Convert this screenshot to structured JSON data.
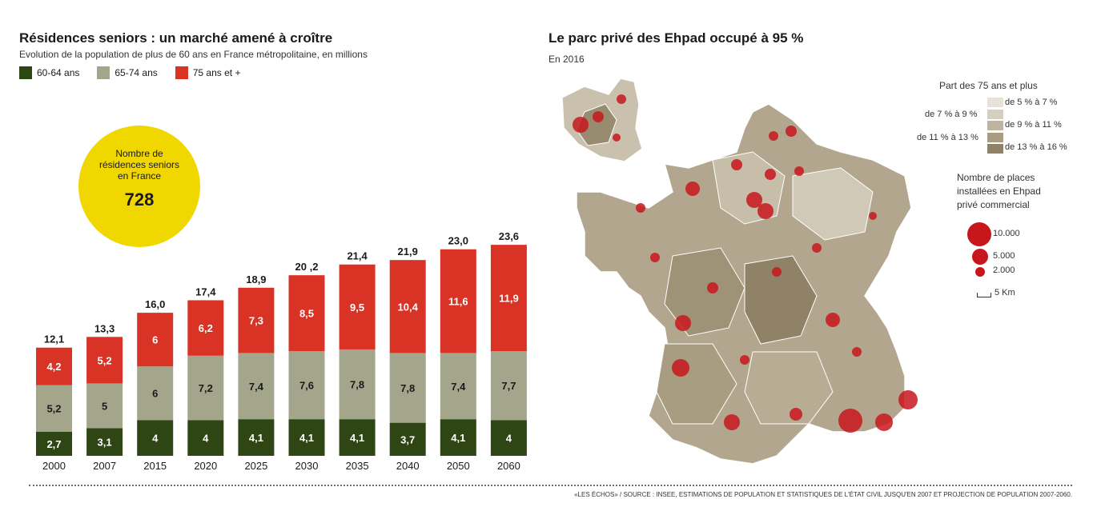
{
  "left": {
    "title": "Résidences seniors : un marché amené à croître",
    "subtitle": "Evolution de la population de plus de 60 ans en France métropolitaine, en millions",
    "legend": [
      {
        "label": "60-64 ans",
        "color": "#2d4614"
      },
      {
        "label": "65-74 ans",
        "color": "#a3a68b"
      },
      {
        "label": "75 ans et +",
        "color": "#d93326"
      }
    ],
    "badge": {
      "label": "Nombre de résidences seniors en France",
      "value": "728"
    }
  },
  "chart_data": {
    "type": "bar",
    "stacked": true,
    "categories": [
      "2000",
      "2007",
      "2015",
      "2020",
      "2025",
      "2030",
      "2035",
      "2040",
      "2050",
      "2060"
    ],
    "series": [
      {
        "name": "60-64 ans",
        "color": "#2d4614",
        "values": [
          2.7,
          3.1,
          4,
          4,
          4.1,
          4.1,
          4.1,
          3.7,
          4.1,
          4
        ],
        "labels": [
          "2,7",
          "3,1",
          "4",
          "4",
          "4,1",
          "4,1",
          "4,1",
          "3,7",
          "4,1",
          "4"
        ]
      },
      {
        "name": "65-74 ans",
        "color": "#a3a68b",
        "values": [
          5.2,
          5,
          6,
          7.2,
          7.4,
          7.6,
          7.8,
          7.8,
          7.4,
          7.7
        ],
        "labels": [
          "5,2",
          "5",
          "6",
          "7,2",
          "7,4",
          "7,6",
          "7,8",
          "7,8",
          "7,4",
          "7,7"
        ]
      },
      {
        "name": "75 ans et +",
        "color": "#d93326",
        "values": [
          4.2,
          5.2,
          6,
          6.2,
          7.3,
          8.5,
          9.5,
          10.4,
          11.6,
          11.9
        ],
        "labels": [
          "4,2",
          "5,2",
          "6",
          "6,2",
          "7,3",
          "8,5",
          "9,5",
          "10,4",
          "11,6",
          "11,9"
        ]
      }
    ],
    "totals": [
      "12,1",
      "13,3",
      "16,0",
      "17,4",
      "18,9",
      "20 ,2",
      "21,4",
      "21,9",
      "23,0",
      "23,6"
    ],
    "total_values": [
      12.1,
      13.3,
      16.0,
      17.4,
      18.9,
      20.2,
      21.4,
      21.9,
      23.0,
      23.6
    ],
    "ylim": [
      0,
      24
    ]
  },
  "map": {
    "title": "Le parc privé des Ehpad occupé à 95 %",
    "subtitle": "En 2016",
    "share_legend_title": "Part des 75 ans et plus",
    "share_legend": [
      {
        "label": "de 5 % à 7 %",
        "color": "#e7e2d8"
      },
      {
        "label": "de 7 % à 9 %",
        "color": "#d6cfbf"
      },
      {
        "label": "de 9 % à 11 %",
        "color": "#bfb59f"
      },
      {
        "label": "de 11 % à 13 %",
        "color": "#a89c81"
      },
      {
        "label": "de 13 % à 16 %",
        "color": "#8f8266"
      }
    ],
    "places_legend_title": [
      "Nombre de places",
      "installées en Ehpad",
      "privé commercial"
    ],
    "places_legend": [
      {
        "label": "10.000",
        "value": 10000
      },
      {
        "label": "5.000",
        "value": 5000
      },
      {
        "label": "2.000",
        "value": 2000
      }
    ],
    "scale_label": "5 Km",
    "dot_color": "#c8161d"
  },
  "footer": {
    "source": "«LES ÉCHOS» / SOURCE : INSEE, ESTIMATIONS DE POPULATION ET STATISTIQUES DE L'ÉTAT CIVIL JUSQU'EN 2007 ET PROJECTION DE POPULATION 2007-2060."
  }
}
